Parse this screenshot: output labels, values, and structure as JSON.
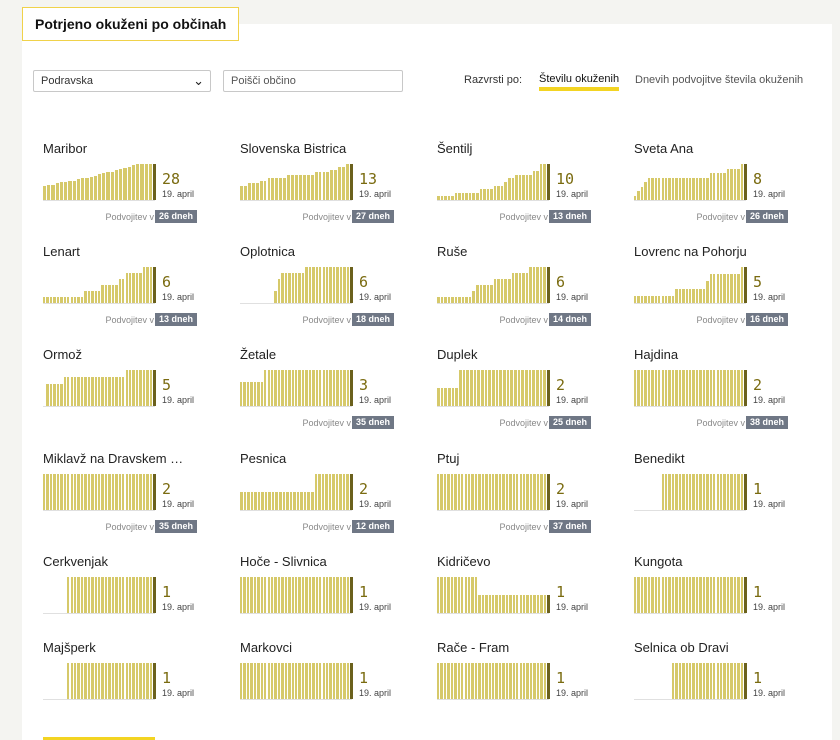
{
  "title": "Potrjeno okuženi po občinah",
  "controls": {
    "region_value": "Podravska",
    "search_placeholder": "Poišči občino",
    "sort_label": "Razvrsti po:",
    "sort_options": [
      "Številu okuženih",
      "Dnevih podvojitve števila okuženih"
    ],
    "sort_selected": "Številu okuženih"
  },
  "colors": {
    "accent": "#f3d422",
    "bar": "#d6c96a",
    "bar_current": "#6b611d",
    "count_text": "#7a6b10",
    "badge_bg": "#6f7785"
  },
  "icons": {
    "select_chevron": "chevron-down-icon"
  },
  "doubling_prefix": "Podvojitev v",
  "municipalities": [
    {
      "name": "Maribor",
      "count": "28",
      "date": "19. april",
      "doubling": "26 dneh",
      "series": [
        11,
        12,
        12,
        13,
        14,
        14,
        15,
        15,
        16,
        17,
        17,
        18,
        19,
        20,
        21,
        22,
        22,
        23,
        24,
        25,
        26,
        27,
        28,
        28,
        28,
        28
      ]
    },
    {
      "name": "Slovenska Bistrica",
      "count": "13",
      "date": "19. april",
      "doubling": "27 dneh",
      "series": [
        5,
        5,
        6,
        6,
        6,
        7,
        7,
        8,
        8,
        8,
        8,
        8,
        9,
        9,
        9,
        9,
        9,
        9,
        9,
        10,
        10,
        10,
        10,
        11,
        11,
        12,
        12,
        13
      ]
    },
    {
      "name": "Šentilj",
      "count": "10",
      "date": "19. april",
      "doubling": "13 dneh",
      "series": [
        1,
        1,
        1,
        1,
        1,
        2,
        2,
        2,
        2,
        2,
        2,
        2,
        3,
        3,
        3,
        3,
        4,
        4,
        4,
        5,
        6,
        6,
        7,
        7,
        7,
        7,
        7,
        8,
        8,
        10,
        10
      ]
    },
    {
      "name": "Sveta Ana",
      "count": "8",
      "date": "19. april",
      "doubling": "26 dneh",
      "series": [
        1,
        2,
        3,
        4,
        5,
        5,
        5,
        5,
        5,
        5,
        5,
        5,
        5,
        5,
        5,
        5,
        5,
        5,
        5,
        5,
        5,
        5,
        6,
        6,
        6,
        6,
        6,
        7,
        7,
        7,
        7,
        8
      ]
    },
    {
      "name": "Lenart",
      "count": "6",
      "date": "19. april",
      "doubling": "13 dneh",
      "series": [
        1,
        1,
        1,
        1,
        1,
        1,
        1,
        1,
        1,
        1,
        1,
        1,
        2,
        2,
        2,
        2,
        2,
        3,
        3,
        3,
        3,
        3,
        4,
        4,
        5,
        5,
        5,
        5,
        5,
        6,
        6,
        6
      ]
    },
    {
      "name": "Oplotnica",
      "count": "6",
      "date": "19. april",
      "doubling": "18 dneh",
      "series": [
        0,
        0,
        0,
        0,
        0,
        0,
        0,
        0,
        0,
        0,
        2,
        4,
        5,
        5,
        5,
        5,
        5,
        5,
        5,
        6,
        6,
        6,
        6,
        6,
        6,
        6,
        6,
        6,
        6,
        6,
        6,
        6
      ]
    },
    {
      "name": "Ruše",
      "count": "6",
      "date": "19. april",
      "doubling": "14 dneh",
      "series": [
        1,
        1,
        1,
        1,
        1,
        1,
        1,
        1,
        1,
        1,
        2,
        3,
        3,
        3,
        3,
        3,
        4,
        4,
        4,
        4,
        4,
        5,
        5,
        5,
        5,
        5,
        6,
        6,
        6,
        6,
        6
      ]
    },
    {
      "name": "Lovrenc na Pohorju",
      "count": "5",
      "date": "19. april",
      "doubling": "16 dneh",
      "series": [
        1,
        1,
        1,
        1,
        1,
        1,
        1,
        1,
        1,
        1,
        1,
        1,
        2,
        2,
        2,
        2,
        2,
        2,
        2,
        2,
        2,
        3,
        4,
        4,
        4,
        4,
        4,
        4,
        4,
        4,
        4,
        5
      ]
    },
    {
      "name": "Ormož",
      "count": "5",
      "date": "19. april",
      "series": [
        0,
        3,
        3,
        3,
        3,
        3,
        4,
        4,
        4,
        4,
        4,
        4,
        4,
        4,
        4,
        4,
        4,
        4,
        4,
        4,
        4,
        4,
        4,
        4,
        5,
        5,
        5,
        5,
        5,
        5,
        5,
        5
      ]
    },
    {
      "name": "Žetale",
      "count": "3",
      "date": "19. april",
      "doubling": "35 dneh",
      "series": [
        2,
        2,
        2,
        2,
        2,
        2,
        2,
        3,
        3,
        3,
        3,
        3,
        3,
        3,
        3,
        3,
        3,
        3,
        3,
        3,
        3,
        3,
        3,
        3,
        3,
        3,
        3,
        3,
        3,
        3,
        3,
        3
      ]
    },
    {
      "name": "Duplek",
      "count": "2",
      "date": "19. april",
      "doubling": "25 dneh",
      "series": [
        1,
        1,
        1,
        1,
        1,
        1,
        2,
        2,
        2,
        2,
        2,
        2,
        2,
        2,
        2,
        2,
        2,
        2,
        2,
        2,
        2,
        2,
        2,
        2,
        2,
        2,
        2,
        2,
        2,
        2
      ]
    },
    {
      "name": "Hajdina",
      "count": "2",
      "date": "19. april",
      "doubling": "38 dneh",
      "series": [
        2,
        2,
        2,
        2,
        2,
        2,
        2,
        2,
        2,
        2,
        2,
        2,
        2,
        2,
        2,
        2,
        2,
        2,
        2,
        2,
        2,
        2,
        2,
        2,
        2,
        2,
        2,
        2,
        2,
        2,
        2,
        2
      ]
    },
    {
      "name": "Miklavž na Dravskem polju",
      "count": "2",
      "date": "19. april",
      "doubling": "35 dneh",
      "series": [
        2,
        2,
        2,
        2,
        2,
        2,
        2,
        2,
        2,
        2,
        2,
        2,
        2,
        2,
        2,
        2,
        2,
        2,
        2,
        2,
        2,
        2,
        2,
        2,
        2,
        2,
        2,
        2,
        2,
        2,
        2,
        2
      ]
    },
    {
      "name": "Pesnica",
      "count": "2",
      "date": "19. april",
      "doubling": "12 dneh",
      "series": [
        1,
        1,
        1,
        1,
        1,
        1,
        1,
        1,
        1,
        1,
        1,
        1,
        1,
        1,
        1,
        1,
        1,
        1,
        1,
        1,
        1,
        2,
        2,
        2,
        2,
        2,
        2,
        2,
        2,
        2,
        2
      ]
    },
    {
      "name": "Ptuj",
      "count": "2",
      "date": "19. april",
      "doubling": "37 dneh",
      "series": [
        2,
        2,
        2,
        2,
        2,
        2,
        2,
        2,
        2,
        2,
        2,
        2,
        2,
        2,
        2,
        2,
        2,
        2,
        2,
        2,
        2,
        2,
        2,
        2,
        2,
        2,
        2,
        2,
        2,
        2,
        2,
        2
      ]
    },
    {
      "name": "Benedikt",
      "count": "1",
      "date": "19. april",
      "series": [
        0,
        0,
        0,
        0,
        0,
        0,
        0,
        0,
        1,
        1,
        1,
        1,
        1,
        1,
        1,
        1,
        1,
        1,
        1,
        1,
        1,
        1,
        1,
        1,
        1,
        1,
        1,
        1,
        1,
        1,
        1,
        1
      ]
    },
    {
      "name": "Cerkvenjak",
      "count": "1",
      "date": "19. april",
      "series": [
        0,
        0,
        0,
        0,
        0,
        0,
        0,
        1,
        1,
        1,
        1,
        1,
        1,
        1,
        1,
        1,
        1,
        1,
        1,
        1,
        1,
        1,
        1,
        1,
        1,
        1,
        1,
        1,
        1,
        1,
        1,
        1
      ]
    },
    {
      "name": "Hoče - Slivnica",
      "count": "1",
      "date": "19. april",
      "series": [
        1,
        1,
        1,
        1,
        1,
        1,
        1,
        1,
        1,
        1,
        1,
        1,
        1,
        1,
        1,
        1,
        1,
        1,
        1,
        1,
        1,
        1,
        1,
        1,
        1,
        1,
        1,
        1,
        1,
        1,
        1,
        1
      ]
    },
    {
      "name": "Kidričevo",
      "count": "1",
      "date": "19. april",
      "series": [
        2,
        2,
        2,
        2,
        2,
        2,
        2,
        2,
        2,
        2,
        2,
        2,
        1,
        1,
        1,
        1,
        1,
        1,
        1,
        1,
        1,
        1,
        1,
        1,
        1,
        1,
        1,
        1,
        1,
        1,
        1,
        1
      ]
    },
    {
      "name": "Kungota",
      "count": "1",
      "date": "19. april",
      "series": [
        1,
        1,
        1,
        1,
        1,
        1,
        1,
        1,
        1,
        1,
        1,
        1,
        1,
        1,
        1,
        1,
        1,
        1,
        1,
        1,
        1,
        1,
        1,
        1,
        1,
        1,
        1,
        1,
        1,
        1,
        1,
        1
      ]
    },
    {
      "name": "Majšperk",
      "count": "1",
      "date": "19. april",
      "series": [
        0,
        0,
        0,
        0,
        0,
        0,
        0,
        1,
        1,
        1,
        1,
        1,
        1,
        1,
        1,
        1,
        1,
        1,
        1,
        1,
        1,
        1,
        1,
        1,
        1,
        1,
        1,
        1,
        1,
        1,
        1,
        1
      ]
    },
    {
      "name": "Markovci",
      "count": "1",
      "date": "19. april",
      "series": [
        1,
        1,
        1,
        1,
        1,
        1,
        1,
        1,
        1,
        1,
        1,
        1,
        1,
        1,
        1,
        1,
        1,
        1,
        1,
        1,
        1,
        1,
        1,
        1,
        1,
        1,
        1,
        1,
        1,
        1,
        1,
        1
      ]
    },
    {
      "name": "Rače - Fram",
      "count": "1",
      "date": "19. april",
      "series": [
        1,
        1,
        1,
        1,
        1,
        1,
        1,
        1,
        1,
        1,
        1,
        1,
        1,
        1,
        1,
        1,
        1,
        1,
        1,
        1,
        1,
        1,
        1,
        1,
        1,
        1,
        1,
        1,
        1,
        1,
        1,
        1
      ]
    },
    {
      "name": "Selnica ob Dravi",
      "count": "1",
      "date": "19. april",
      "series": [
        0,
        0,
        0,
        0,
        0,
        0,
        0,
        0,
        0,
        0,
        0,
        1,
        1,
        1,
        1,
        1,
        1,
        1,
        1,
        1,
        1,
        1,
        1,
        1,
        1,
        1,
        1,
        1,
        1,
        1,
        1,
        1
      ]
    }
  ]
}
